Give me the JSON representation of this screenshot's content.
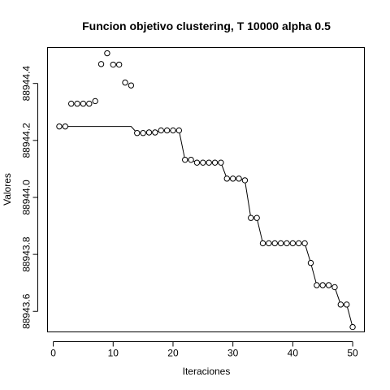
{
  "chart_data": {
    "type": "scatter",
    "title": "Funcion objetivo clustering, T 10000 alpha 0.5",
    "xlabel": "Iteraciones",
    "ylabel": "Valores",
    "xlim": [
      -0.96,
      51.96
    ],
    "ylim": [
      88943.528,
      88944.526
    ],
    "x_ticks": [
      0,
      10,
      20,
      30,
      40,
      50
    ],
    "x_tick_labels": [
      "0",
      "10",
      "20",
      "30",
      "40",
      "50"
    ],
    "y_ticks": [
      88943.6,
      88943.8,
      88944.0,
      88944.2,
      88944.4
    ],
    "y_tick_labels": [
      "88943.6",
      "88943.8",
      "88944.0",
      "88944.2",
      "88944.4"
    ],
    "grid": false,
    "legend": "none",
    "series": [
      {
        "kind": "points",
        "x": [
          1,
          2,
          3,
          4,
          5,
          6,
          7,
          8,
          9,
          10,
          11,
          12,
          13,
          14,
          15,
          16,
          17,
          18,
          19,
          20,
          21,
          22,
          23,
          24,
          25,
          26,
          27,
          28,
          29,
          30,
          31,
          32,
          33,
          34,
          35,
          36,
          37,
          38,
          39,
          40,
          41,
          42,
          43,
          44,
          45,
          46,
          47,
          48,
          49,
          50
        ],
        "y": [
          88944.249,
          88944.249,
          88944.329,
          88944.329,
          88944.329,
          88944.329,
          88944.338,
          88944.468,
          88944.506,
          88944.466,
          88944.466,
          88944.403,
          88944.393,
          88944.226,
          88944.226,
          88944.228,
          88944.228,
          88944.235,
          88944.235,
          88944.235,
          88944.235,
          88944.132,
          88944.132,
          88944.122,
          88944.122,
          88944.122,
          88944.122,
          88944.122,
          88944.066,
          88944.066,
          88944.066,
          88944.06,
          88943.928,
          88943.928,
          88943.839,
          88943.839,
          88943.839,
          88943.839,
          88943.839,
          88943.839,
          88943.839,
          88943.839,
          88943.77,
          88943.692,
          88943.692,
          88943.692,
          88943.685,
          88943.624,
          88943.624,
          88943.545
        ]
      },
      {
        "kind": "line",
        "x": [
          1,
          2,
          3,
          4,
          5,
          6,
          7,
          8,
          9,
          10,
          11,
          12,
          13,
          14,
          15,
          16,
          17,
          18,
          19,
          20,
          21,
          22,
          23,
          24,
          25,
          26,
          27,
          28,
          29,
          30,
          31,
          32,
          33,
          34,
          35,
          36,
          37,
          38,
          39,
          40,
          41,
          42,
          43,
          44,
          45,
          46,
          47,
          48,
          49,
          50
        ],
        "y": [
          88944.249,
          88944.249,
          88944.249,
          88944.249,
          88944.249,
          88944.249,
          88944.249,
          88944.249,
          88944.249,
          88944.249,
          88944.249,
          88944.249,
          88944.249,
          88944.226,
          88944.226,
          88944.228,
          88944.228,
          88944.235,
          88944.235,
          88944.235,
          88944.235,
          88944.132,
          88944.132,
          88944.122,
          88944.122,
          88944.122,
          88944.122,
          88944.122,
          88944.066,
          88944.066,
          88944.066,
          88944.06,
          88943.928,
          88943.928,
          88943.839,
          88943.839,
          88943.839,
          88943.839,
          88943.839,
          88943.839,
          88943.839,
          88943.839,
          88943.77,
          88943.692,
          88943.692,
          88943.692,
          88943.685,
          88943.624,
          88943.624,
          88943.545
        ]
      }
    ]
  }
}
